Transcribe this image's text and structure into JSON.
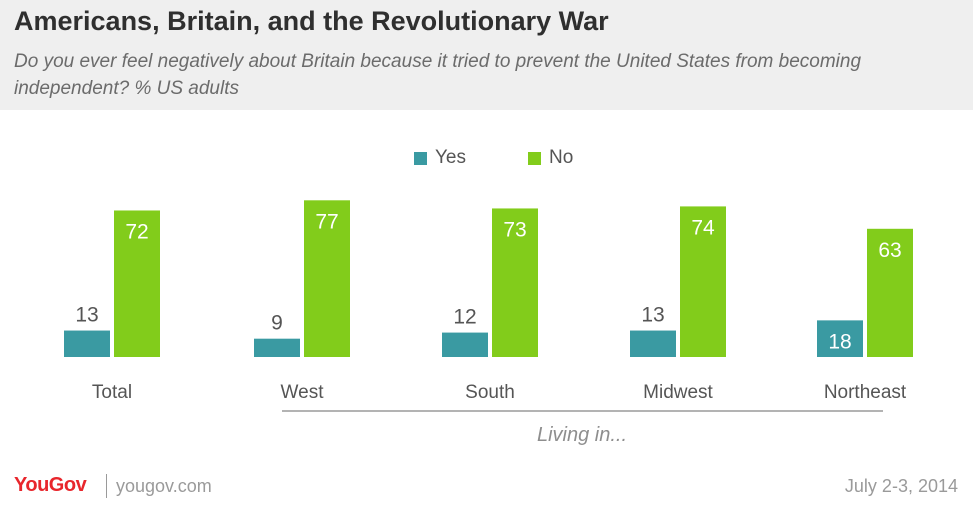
{
  "header": {
    "title": "Americans, Britain, and the Revolutionary War",
    "subtitle": "Do you ever feel negatively about Britain because it tried to prevent the United States from becoming independent? % US adults"
  },
  "colors": {
    "yes": "#3a9aa2",
    "no": "#82cc1b"
  },
  "chart_data": {
    "type": "bar",
    "categories": [
      "Total",
      "West",
      "South",
      "Midwest",
      "Northeast"
    ],
    "series": [
      {
        "name": "Yes",
        "values": [
          13,
          9,
          12,
          13,
          18
        ]
      },
      {
        "name": "No",
        "values": [
          72,
          77,
          73,
          74,
          63
        ]
      }
    ],
    "legend_position": "top-center",
    "grid": false,
    "group_label": "Living in..."
  },
  "footer": {
    "logo": "YouGov",
    "site": "yougov.com",
    "date": "July 2-3, 2014"
  }
}
